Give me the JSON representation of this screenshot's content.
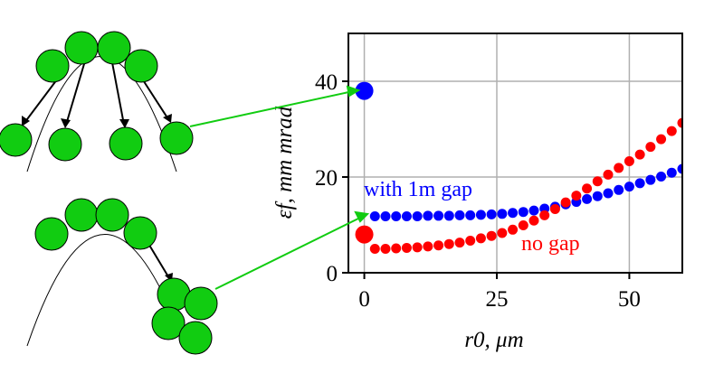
{
  "colors": {
    "blue": "#0000ff",
    "red": "#ff0000",
    "green": "#00c800",
    "bead": "#11cc11",
    "grid": "#b0b0b0"
  },
  "chart_data": {
    "type": "scatter",
    "xlabel": "r0, μm",
    "ylabel": "εf, mm mrad",
    "xlim": [
      -3,
      60
    ],
    "ylim": [
      0,
      50
    ],
    "xticks": [
      0,
      25,
      50
    ],
    "yticks": [
      0,
      20,
      40
    ],
    "x_tick_labels": [
      "0",
      "25",
      "50"
    ],
    "y_tick_labels": [
      "0",
      "20",
      "40"
    ],
    "grid": true,
    "annotations": {
      "blue": "with 1m gap",
      "red": "no gap"
    },
    "highlight_points": [
      {
        "series": "with 1m gap",
        "x": 0,
        "y": 38
      },
      {
        "series": "no gap",
        "x": 0,
        "y": 8
      }
    ],
    "series": [
      {
        "name": "with 1m gap",
        "color": "blue",
        "x": [
          2,
          4,
          6,
          8,
          10,
          12,
          14,
          16,
          18,
          20,
          22,
          24,
          26,
          28,
          30,
          32,
          34,
          36,
          38,
          40,
          42,
          44,
          46,
          48,
          50,
          52,
          54,
          56,
          58,
          60
        ],
        "y": [
          11.8,
          11.8,
          11.8,
          11.8,
          11.8,
          11.9,
          11.9,
          11.9,
          12.0,
          12.0,
          12.1,
          12.2,
          12.3,
          12.5,
          12.7,
          13.0,
          13.4,
          13.8,
          14.3,
          14.8,
          15.4,
          16.0,
          16.6,
          17.3,
          18.0,
          18.7,
          19.4,
          20.1,
          20.9,
          21.7
        ]
      },
      {
        "name": "no gap",
        "color": "red",
        "x": [
          2,
          4,
          6,
          8,
          10,
          12,
          14,
          16,
          18,
          20,
          22,
          24,
          26,
          28,
          30,
          32,
          34,
          36,
          38,
          40,
          42,
          44,
          46,
          48,
          50,
          52,
          54,
          56,
          58,
          60
        ],
        "y": [
          5.0,
          5.0,
          5.1,
          5.2,
          5.3,
          5.5,
          5.7,
          6.0,
          6.3,
          6.7,
          7.2,
          7.7,
          8.3,
          9.0,
          9.9,
          10.9,
          12.0,
          13.3,
          14.7,
          16.1,
          17.6,
          19.1,
          20.5,
          21.9,
          23.3,
          24.7,
          26.3,
          27.9,
          29.6,
          31.3
        ]
      }
    ]
  }
}
